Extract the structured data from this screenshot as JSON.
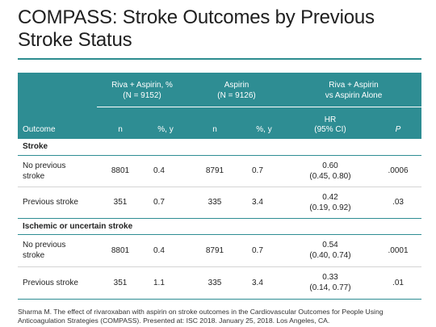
{
  "title": "COMPASS: Stroke Outcomes by Previous Stroke Status",
  "table": {
    "group_headers": {
      "riva_line1": "Riva + Aspirin, %",
      "riva_line2": "(N = 9152)",
      "aspirin_line1": "Aspirin",
      "aspirin_line2": "(N = 9126)",
      "compare_line1": "Riva + Aspirin",
      "compare_line2": "vs Aspirin Alone"
    },
    "columns": {
      "outcome": "Outcome",
      "riva_n": "n",
      "riva_pct": "%, y",
      "asp_n": "n",
      "asp_pct": "%, y",
      "hr_line1": "HR",
      "hr_line2": "(95% CI)",
      "p": "P"
    },
    "sections": [
      {
        "label": "Stroke",
        "rows": [
          {
            "name_line1": "No previous",
            "name_line2": "stroke",
            "riva_n": "8801",
            "riva_pct": "0.4",
            "asp_n": "8791",
            "asp_pct": "0.7",
            "hr": "0.60",
            "ci": "(0.45, 0.80)",
            "p": ".0006"
          },
          {
            "name_line1": "Previous stroke",
            "name_line2": "",
            "riva_n": "351",
            "riva_pct": "0.7",
            "asp_n": "335",
            "asp_pct": "3.4",
            "hr": "0.42",
            "ci": "(0.19, 0.92)",
            "p": ".03"
          }
        ]
      },
      {
        "label": "Ischemic or uncertain stroke",
        "rows": [
          {
            "name_line1": "No previous",
            "name_line2": "stroke",
            "riva_n": "8801",
            "riva_pct": "0.4",
            "asp_n": "8791",
            "asp_pct": "0.7",
            "hr": "0.54",
            "ci": "(0.40, 0.74)",
            "p": ".0001"
          },
          {
            "name_line1": "Previous stroke",
            "name_line2": "",
            "riva_n": "351",
            "riva_pct": "1.1",
            "asp_n": "335",
            "asp_pct": "3.4",
            "hr": "0.33",
            "ci": "(0.14, 0.77)",
            "p": ".01"
          }
        ]
      }
    ]
  },
  "footnote": "Sharma M. The effect of rivaroxaban with aspirin on stroke outcomes in the Cardiovascular Outcomes for People Using Anticoagulation Strategies (COMPASS). Presented at: ISC 2018. January 25, 2018. Los Angeles, CA.",
  "colors": {
    "header_teal": "#2e8d93",
    "title_rule": "#2d8c8f",
    "text": "#222222"
  }
}
